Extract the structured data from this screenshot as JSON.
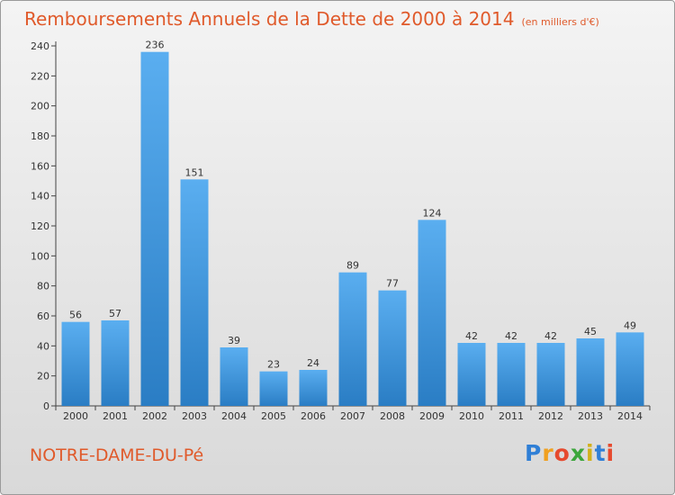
{
  "header": {
    "title": "Remboursements Annuels de la Dette de 2000 à 2014",
    "unit": "(en milliers d'€)"
  },
  "footer": {
    "commune": "NOTRE-DAME-DU-Pé",
    "logo": "Proxiti"
  },
  "colors": {
    "title": "#e05a2b",
    "bar_top": "#5aaef0",
    "bar_bottom": "#2a7dc4",
    "axis": "#444444"
  },
  "chart_data": {
    "type": "bar",
    "categories": [
      "2000",
      "2001",
      "2002",
      "2003",
      "2004",
      "2005",
      "2006",
      "2007",
      "2008",
      "2009",
      "2010",
      "2011",
      "2012",
      "2013",
      "2014"
    ],
    "values": [
      56,
      57,
      236,
      151,
      39,
      23,
      24,
      89,
      77,
      124,
      42,
      42,
      42,
      45,
      49
    ],
    "ylim": [
      0,
      240
    ],
    "yticks": [
      0,
      20,
      40,
      60,
      80,
      100,
      120,
      140,
      160,
      180,
      200,
      220,
      240
    ],
    "grid": false,
    "data_labels": true
  }
}
